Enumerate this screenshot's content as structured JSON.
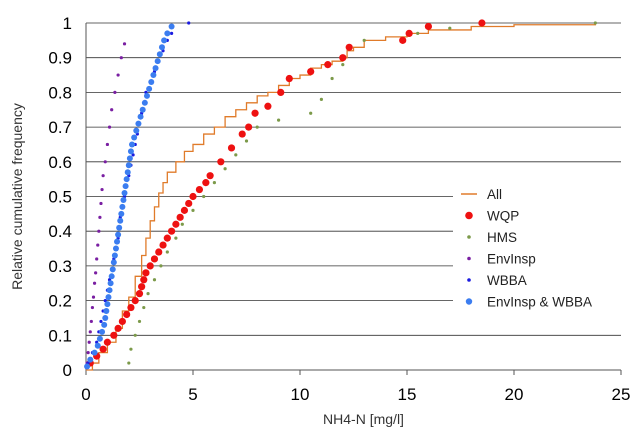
{
  "chart_data": {
    "type": "scatter",
    "title": "",
    "xlabel": "NH4-N [mg/l]",
    "ylabel": "Relative cumulative frequency",
    "xlim": [
      0,
      25
    ],
    "ylim": [
      0,
      1
    ],
    "xticks": [
      "0",
      "5",
      "10",
      "15",
      "20",
      "25"
    ],
    "yticks": [
      "0",
      "0.1",
      "0.2",
      "0.3",
      "0.4",
      "0.5",
      "0.6",
      "0.7",
      "0.8",
      "0.9",
      "1"
    ],
    "grid": "horizontal",
    "legend_position": "right",
    "series": [
      {
        "name": "All",
        "style": "line",
        "color": "#e07b2a",
        "points": [
          [
            0,
            0
          ],
          [
            0.3,
            0.02
          ],
          [
            0.6,
            0.05
          ],
          [
            1.0,
            0.08
          ],
          [
            1.4,
            0.12
          ],
          [
            1.7,
            0.17
          ],
          [
            2.0,
            0.21
          ],
          [
            2.3,
            0.27
          ],
          [
            2.6,
            0.33
          ],
          [
            2.8,
            0.38
          ],
          [
            3.0,
            0.43
          ],
          [
            3.2,
            0.47
          ],
          [
            3.4,
            0.51
          ],
          [
            3.6,
            0.54
          ],
          [
            3.8,
            0.57
          ],
          [
            4.2,
            0.6
          ],
          [
            4.6,
            0.63
          ],
          [
            5.0,
            0.65
          ],
          [
            5.5,
            0.68
          ],
          [
            6.0,
            0.7
          ],
          [
            6.5,
            0.73
          ],
          [
            7.0,
            0.75
          ],
          [
            7.5,
            0.77
          ],
          [
            8.0,
            0.79
          ],
          [
            8.5,
            0.8
          ],
          [
            9.0,
            0.82
          ],
          [
            9.5,
            0.84
          ],
          [
            10.0,
            0.85
          ],
          [
            10.5,
            0.87
          ],
          [
            11.0,
            0.88
          ],
          [
            11.5,
            0.89
          ],
          [
            12.0,
            0.9
          ],
          [
            12.2,
            0.92
          ],
          [
            12.5,
            0.93
          ],
          [
            13.0,
            0.95
          ],
          [
            14.0,
            0.96
          ],
          [
            15.0,
            0.97
          ],
          [
            16.0,
            0.98
          ],
          [
            18.0,
            0.99
          ],
          [
            20.0,
            0.995
          ],
          [
            23.8,
            1.0
          ]
        ]
      },
      {
        "name": "WQP",
        "style": "marker",
        "marker": "dot-large",
        "color": "#ee1111",
        "points": [
          [
            0.2,
            0.02
          ],
          [
            0.5,
            0.04
          ],
          [
            0.8,
            0.06
          ],
          [
            1.0,
            0.08
          ],
          [
            1.3,
            0.1
          ],
          [
            1.5,
            0.12
          ],
          [
            1.7,
            0.14
          ],
          [
            1.9,
            0.16
          ],
          [
            2.1,
            0.18
          ],
          [
            2.3,
            0.2
          ],
          [
            2.5,
            0.22
          ],
          [
            2.6,
            0.24
          ],
          [
            2.7,
            0.26
          ],
          [
            2.8,
            0.28
          ],
          [
            3.0,
            0.3
          ],
          [
            3.2,
            0.32
          ],
          [
            3.4,
            0.34
          ],
          [
            3.6,
            0.36
          ],
          [
            3.8,
            0.38
          ],
          [
            4.0,
            0.4
          ],
          [
            4.2,
            0.42
          ],
          [
            4.4,
            0.44
          ],
          [
            4.6,
            0.46
          ],
          [
            4.8,
            0.48
          ],
          [
            5.0,
            0.5
          ],
          [
            5.3,
            0.52
          ],
          [
            5.6,
            0.54
          ],
          [
            5.8,
            0.56
          ],
          [
            6.3,
            0.6
          ],
          [
            6.8,
            0.64
          ],
          [
            7.3,
            0.68
          ],
          [
            7.6,
            0.7
          ],
          [
            7.9,
            0.74
          ],
          [
            8.5,
            0.76
          ],
          [
            9.1,
            0.8
          ],
          [
            9.5,
            0.84
          ],
          [
            10.5,
            0.86
          ],
          [
            11.3,
            0.88
          ],
          [
            12.0,
            0.9
          ],
          [
            12.3,
            0.93
          ],
          [
            14.8,
            0.95
          ],
          [
            15.1,
            0.97
          ],
          [
            16.0,
            0.99
          ],
          [
            18.5,
            1.0
          ]
        ]
      },
      {
        "name": "HMS",
        "style": "marker",
        "marker": "dot-small",
        "color": "#7c9a4a",
        "points": [
          [
            2.0,
            0.02
          ],
          [
            2.1,
            0.06
          ],
          [
            2.3,
            0.1
          ],
          [
            2.5,
            0.14
          ],
          [
            2.7,
            0.18
          ],
          [
            2.9,
            0.22
          ],
          [
            3.2,
            0.26
          ],
          [
            3.5,
            0.3
          ],
          [
            3.8,
            0.34
          ],
          [
            4.2,
            0.38
          ],
          [
            4.5,
            0.42
          ],
          [
            5.0,
            0.46
          ],
          [
            5.5,
            0.5
          ],
          [
            6.0,
            0.54
          ],
          [
            6.5,
            0.58
          ],
          [
            7.0,
            0.62
          ],
          [
            7.5,
            0.66
          ],
          [
            8.0,
            0.7
          ],
          [
            9.0,
            0.72
          ],
          [
            10.5,
            0.74
          ],
          [
            11.0,
            0.78
          ],
          [
            11.5,
            0.84
          ],
          [
            12.0,
            0.88
          ],
          [
            13.0,
            0.95
          ],
          [
            15.5,
            0.97
          ],
          [
            17.0,
            0.985
          ],
          [
            23.8,
            1.0
          ]
        ]
      },
      {
        "name": "EnvInsp",
        "style": "marker",
        "marker": "dot-small",
        "color": "#7a1fa2",
        "points": [
          [
            0.05,
            0.02
          ],
          [
            0.1,
            0.05
          ],
          [
            0.15,
            0.08
          ],
          [
            0.2,
            0.11
          ],
          [
            0.25,
            0.14
          ],
          [
            0.3,
            0.18
          ],
          [
            0.35,
            0.21
          ],
          [
            0.4,
            0.25
          ],
          [
            0.45,
            0.28
          ],
          [
            0.5,
            0.32
          ],
          [
            0.55,
            0.36
          ],
          [
            0.6,
            0.4
          ],
          [
            0.65,
            0.44
          ],
          [
            0.7,
            0.48
          ],
          [
            0.75,
            0.52
          ],
          [
            0.8,
            0.56
          ],
          [
            0.9,
            0.6
          ],
          [
            1.0,
            0.65
          ],
          [
            1.1,
            0.7
          ],
          [
            1.2,
            0.75
          ],
          [
            1.35,
            0.8
          ],
          [
            1.5,
            0.85
          ],
          [
            1.65,
            0.9
          ],
          [
            1.8,
            0.94
          ]
        ]
      },
      {
        "name": "WBBA",
        "style": "marker",
        "marker": "dot-small",
        "color": "#1a1ae0",
        "points": [
          [
            0.1,
            0.02
          ],
          [
            0.3,
            0.05
          ],
          [
            0.5,
            0.08
          ],
          [
            0.6,
            0.11
          ],
          [
            0.7,
            0.14
          ],
          [
            0.8,
            0.17
          ],
          [
            0.9,
            0.2
          ],
          [
            1.0,
            0.23
          ],
          [
            1.1,
            0.26
          ],
          [
            1.2,
            0.29
          ],
          [
            1.3,
            0.32
          ],
          [
            1.4,
            0.35
          ],
          [
            1.5,
            0.38
          ],
          [
            1.55,
            0.41
          ],
          [
            1.6,
            0.44
          ],
          [
            1.7,
            0.47
          ],
          [
            1.8,
            0.5
          ],
          [
            1.9,
            0.53
          ],
          [
            2.0,
            0.56
          ],
          [
            2.1,
            0.59
          ],
          [
            2.2,
            0.62
          ],
          [
            2.3,
            0.65
          ],
          [
            2.4,
            0.68
          ],
          [
            2.5,
            0.71
          ],
          [
            2.6,
            0.74
          ],
          [
            2.7,
            0.77
          ],
          [
            2.8,
            0.8
          ],
          [
            3.0,
            0.83
          ],
          [
            3.2,
            0.86
          ],
          [
            3.4,
            0.89
          ],
          [
            3.6,
            0.92
          ],
          [
            3.8,
            0.95
          ],
          [
            4.0,
            0.97
          ],
          [
            4.8,
            1.0
          ]
        ]
      },
      {
        "name": "EnvInsp & WBBA",
        "style": "marker",
        "marker": "dot-medium",
        "color": "#3b7df0",
        "points": [
          [
            0.05,
            0.01
          ],
          [
            0.2,
            0.03
          ],
          [
            0.4,
            0.05
          ],
          [
            0.55,
            0.07
          ],
          [
            0.65,
            0.09
          ],
          [
            0.75,
            0.11
          ],
          [
            0.85,
            0.13
          ],
          [
            0.9,
            0.15
          ],
          [
            0.95,
            0.17
          ],
          [
            1.0,
            0.19
          ],
          [
            1.05,
            0.21
          ],
          [
            1.1,
            0.23
          ],
          [
            1.15,
            0.25
          ],
          [
            1.2,
            0.27
          ],
          [
            1.25,
            0.29
          ],
          [
            1.3,
            0.31
          ],
          [
            1.35,
            0.33
          ],
          [
            1.4,
            0.35
          ],
          [
            1.45,
            0.37
          ],
          [
            1.5,
            0.39
          ],
          [
            1.55,
            0.41
          ],
          [
            1.6,
            0.43
          ],
          [
            1.65,
            0.45
          ],
          [
            1.7,
            0.47
          ],
          [
            1.75,
            0.49
          ],
          [
            1.8,
            0.51
          ],
          [
            1.85,
            0.53
          ],
          [
            1.9,
            0.55
          ],
          [
            1.95,
            0.57
          ],
          [
            2.0,
            0.59
          ],
          [
            2.05,
            0.61
          ],
          [
            2.1,
            0.63
          ],
          [
            2.15,
            0.65
          ],
          [
            2.25,
            0.67
          ],
          [
            2.35,
            0.69
          ],
          [
            2.45,
            0.71
          ],
          [
            2.55,
            0.73
          ],
          [
            2.65,
            0.75
          ],
          [
            2.75,
            0.77
          ],
          [
            2.85,
            0.79
          ],
          [
            2.95,
            0.81
          ],
          [
            3.05,
            0.83
          ],
          [
            3.15,
            0.85
          ],
          [
            3.25,
            0.87
          ],
          [
            3.35,
            0.89
          ],
          [
            3.45,
            0.91
          ],
          [
            3.55,
            0.93
          ],
          [
            3.65,
            0.95
          ],
          [
            3.8,
            0.97
          ],
          [
            4.0,
            0.99
          ]
        ]
      }
    ]
  }
}
